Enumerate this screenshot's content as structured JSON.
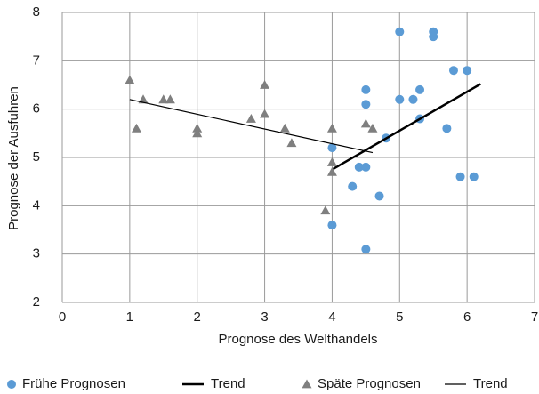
{
  "chart_data": {
    "type": "scatter",
    "x_label": "Prognose des Welthandels",
    "y_label": "Prognose der Ausfuhren",
    "xlim": [
      0,
      7
    ],
    "xticks": [
      0,
      1,
      2,
      3,
      4,
      5,
      6,
      7
    ],
    "ylim": [
      2,
      8
    ],
    "yticks": [
      2,
      3,
      4,
      5,
      6,
      7,
      8
    ],
    "grid": true,
    "legend": "bottom",
    "series": [
      {
        "name": "Frühe Prognosen",
        "color": "#5b9bd5",
        "marker": "circle",
        "x": [
          5.0,
          5.5,
          5.5,
          4.5,
          4.5,
          5.0,
          5.2,
          5.3,
          5.8,
          6.0,
          5.3,
          5.7,
          4.8,
          4.0,
          4.4,
          4.5,
          4.3,
          4.7,
          5.9,
          6.1,
          4.0,
          4.5
        ],
        "values": [
          7.6,
          7.6,
          7.5,
          6.4,
          6.1,
          6.2,
          6.2,
          6.4,
          6.8,
          6.8,
          5.8,
          5.6,
          5.4,
          5.2,
          4.8,
          4.8,
          4.4,
          4.2,
          4.6,
          4.6,
          3.6,
          3.1
        ]
      },
      {
        "name": "Trend",
        "color": "#000000",
        "marker": "line",
        "line_width": 2.5,
        "x": [
          4.0,
          6.2
        ],
        "values": [
          4.75,
          6.52
        ]
      },
      {
        "name": "Späte Prognosen",
        "color": "#7f7f7f",
        "marker": "triangle",
        "x": [
          1.0,
          1.1,
          1.2,
          1.5,
          1.6,
          2.0,
          2.0,
          2.8,
          3.0,
          3.0,
          3.3,
          3.4,
          3.9,
          4.0,
          4.0,
          4.0,
          4.5,
          4.6
        ],
        "values": [
          6.6,
          5.6,
          6.2,
          6.2,
          6.2,
          5.6,
          5.5,
          5.8,
          6.5,
          5.9,
          5.6,
          5.3,
          3.9,
          5.6,
          4.9,
          4.7,
          5.7,
          5.6
        ]
      },
      {
        "name": "Trend",
        "color": "#000000",
        "marker": "line",
        "line_width": 1.2,
        "x": [
          1.0,
          4.6
        ],
        "values": [
          6.2,
          5.1
        ]
      }
    ]
  }
}
